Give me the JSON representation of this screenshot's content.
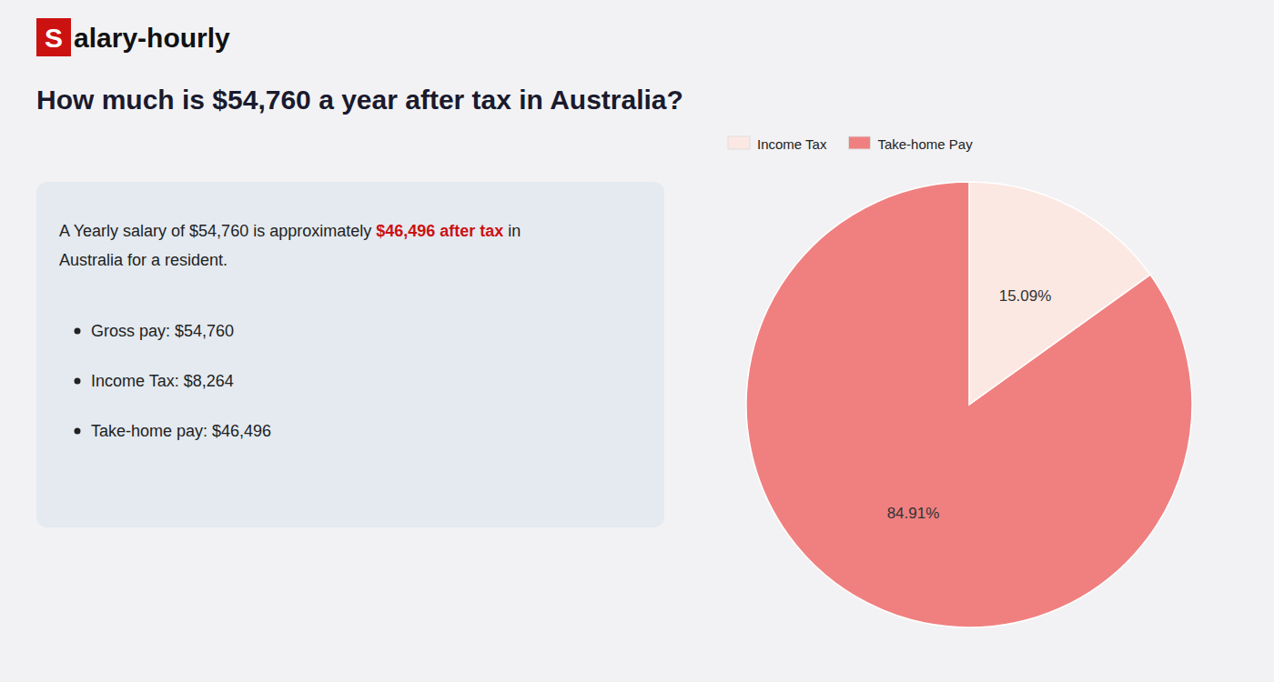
{
  "chart_data": {
    "type": "pie",
    "title": "How much is $54,760 a year after tax in Australia?",
    "categories": [
      "Income Tax",
      "Take-home Pay"
    ],
    "values": [
      15.09,
      84.91
    ],
    "value_labels": [
      "15.09%",
      "84.91%"
    ],
    "colors": [
      "#fce8e2",
      "#f08080"
    ],
    "data_labels": true,
    "legend": "top-left",
    "annotations": [
      {
        "text": "S",
        "color": "#cc1111"
      },
      {
        "text": "alary-hourly"
      },
      {
        "text": "A Yearly salary of $54,760 is approximately "
      },
      {
        "text": "$46,496 after tax",
        "color": "#cc1111"
      },
      {
        "text": " in"
      },
      {
        "text": "Australia for a resident."
      },
      {
        "text": "Gross pay: $54,760"
      },
      {
        "text": "Income Tax: $8,264"
      },
      {
        "text": "Take-home pay: $46,496"
      }
    ]
  }
}
